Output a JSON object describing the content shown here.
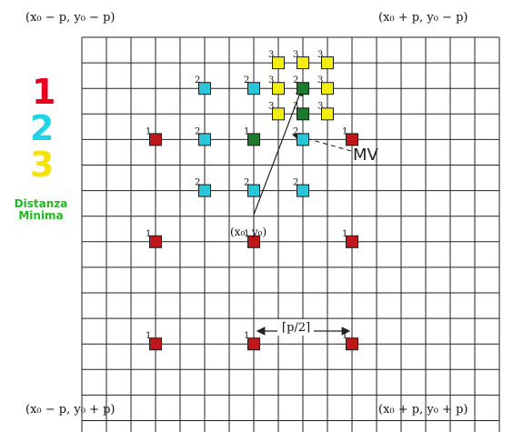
{
  "corners": {
    "top_left": "(x₀ − p,  y₀ − p)",
    "top_right": "(x₀ + p,  y₀ − p)",
    "bottom_left": "(x₀ − p,  y₀ + p)",
    "bottom_right": "(x₀ + p,  y₀ + p)"
  },
  "legend": {
    "items": [
      {
        "label": "1",
        "color": "#e8001e"
      },
      {
        "label": "2",
        "color": "#22d3e6"
      },
      {
        "label": "3",
        "color": "#f4e20a"
      }
    ],
    "min_label_line1": "Distanza",
    "min_label_line2": "Minima",
    "min_color": "#22b821"
  },
  "colors": {
    "step1": "#c0171a",
    "step2": "#29c6da",
    "step3": "#f2ee12",
    "minimum": "#1c7a2d",
    "grid": "#222222"
  },
  "grid": {
    "columns": 17,
    "rows": 16
  },
  "points": [
    {
      "col": 3,
      "row": 4,
      "step": 1,
      "label": "1"
    },
    {
      "col": 7,
      "row": 4,
      "step": 1,
      "label": "1",
      "min": true
    },
    {
      "col": 11,
      "row": 4,
      "step": 1,
      "label": "1"
    },
    {
      "col": 3,
      "row": 8,
      "step": 1,
      "label": "1"
    },
    {
      "col": 7,
      "row": 8,
      "step": 1,
      "label": "1"
    },
    {
      "col": 11,
      "row": 8,
      "step": 1,
      "label": "1"
    },
    {
      "col": 3,
      "row": 12,
      "step": 1,
      "label": "1"
    },
    {
      "col": 7,
      "row": 12,
      "step": 1,
      "label": "1"
    },
    {
      "col": 11,
      "row": 12,
      "step": 1,
      "label": "1"
    },
    {
      "col": 5,
      "row": 2,
      "step": 2,
      "label": "2"
    },
    {
      "col": 7,
      "row": 2,
      "step": 2,
      "label": "2"
    },
    {
      "col": 9,
      "row": 2,
      "step": 2,
      "label": "2",
      "min": true
    },
    {
      "col": 5,
      "row": 4,
      "step": 2,
      "label": "2"
    },
    {
      "col": 9,
      "row": 4,
      "step": 2,
      "label": "2"
    },
    {
      "col": 5,
      "row": 6,
      "step": 2,
      "label": "2"
    },
    {
      "col": 7,
      "row": 6,
      "step": 2,
      "label": "2"
    },
    {
      "col": 9,
      "row": 6,
      "step": 2,
      "label": "2"
    },
    {
      "col": 8,
      "row": 1,
      "step": 3,
      "label": "3"
    },
    {
      "col": 9,
      "row": 1,
      "step": 3,
      "label": "3"
    },
    {
      "col": 10,
      "row": 1,
      "step": 3,
      "label": "3"
    },
    {
      "col": 8,
      "row": 2,
      "step": 3,
      "label": "3"
    },
    {
      "col": 10,
      "row": 2,
      "step": 3,
      "label": "3"
    },
    {
      "col": 8,
      "row": 3,
      "step": 3,
      "label": "3"
    },
    {
      "col": 9,
      "row": 3,
      "step": 3,
      "label": "3",
      "min": true
    },
    {
      "col": 10,
      "row": 3,
      "step": 3,
      "label": "3"
    }
  ],
  "origin_label": "(x₀,  y₀)",
  "mv_label": "MV",
  "spacing_label": "⌈p/2⌉"
}
